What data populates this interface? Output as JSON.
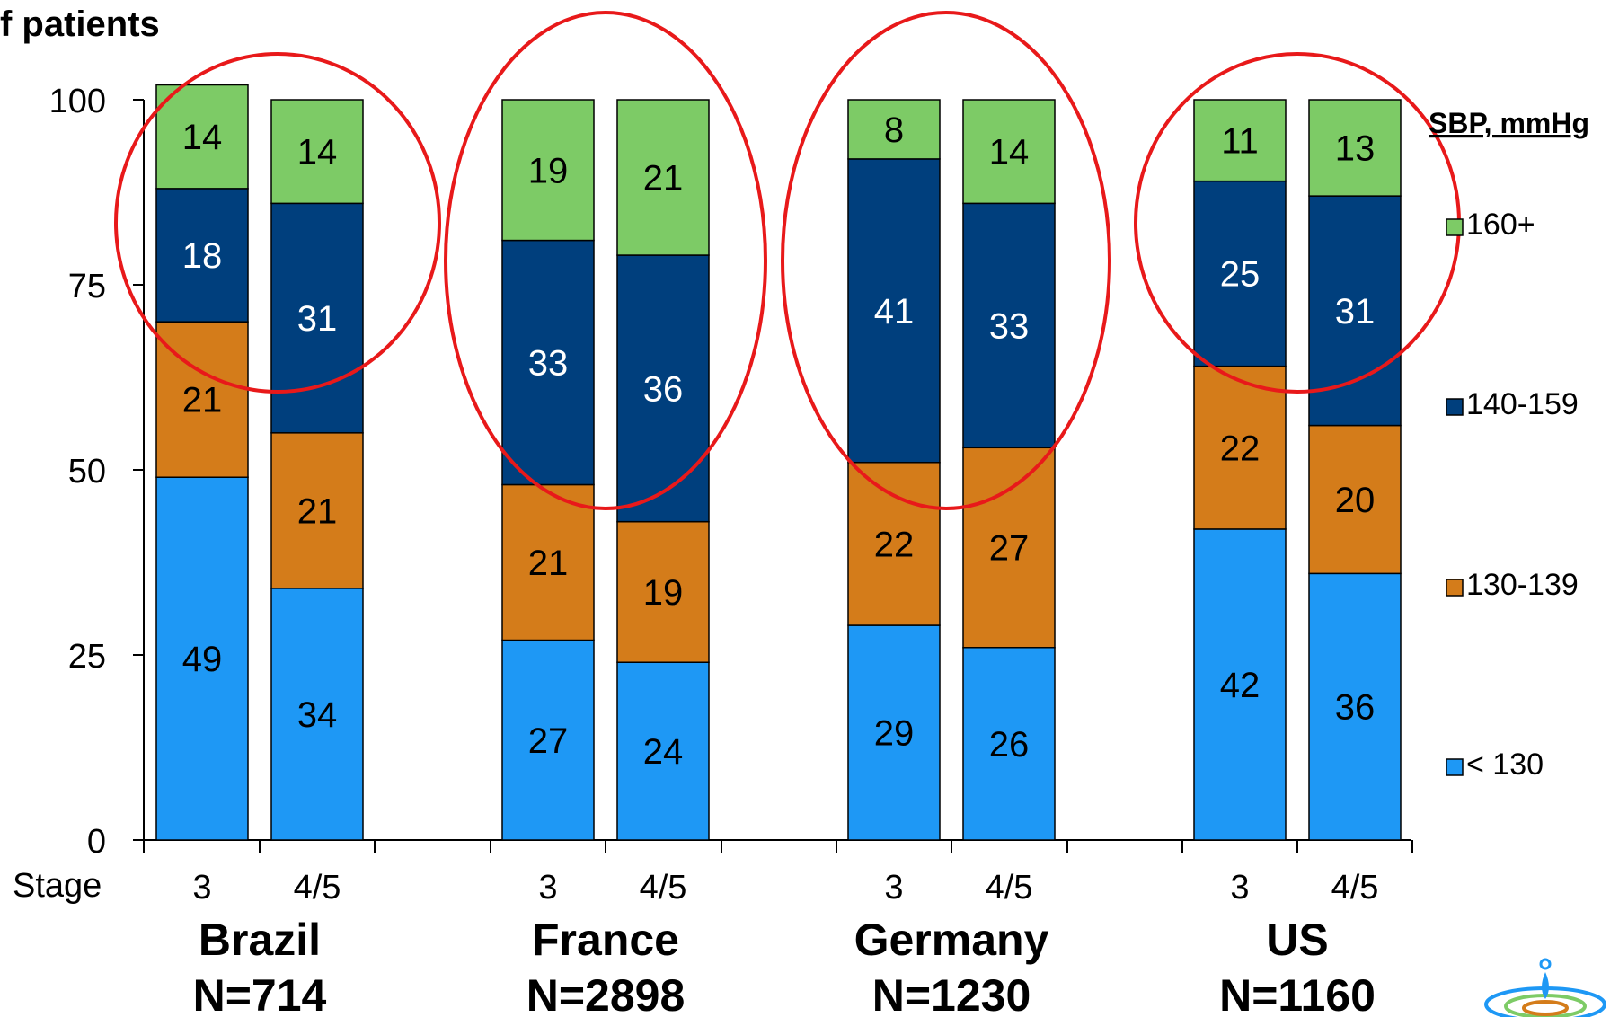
{
  "chart_data": {
    "type": "bar",
    "stacked": true,
    "ylabel": "f patients",
    "ylim": [
      0,
      100
    ],
    "yticks": [
      0,
      25,
      50,
      75,
      100
    ],
    "stage_label": "Stage",
    "groups": [
      {
        "name": "Brazil",
        "n": "N=714",
        "stages": [
          "3",
          "4/5"
        ]
      },
      {
        "name": "France",
        "n": "N=2898",
        "stages": [
          "3",
          "4/5"
        ]
      },
      {
        "name": "Germany",
        "n": "N=1230",
        "stages": [
          "3",
          "4/5"
        ]
      },
      {
        "name": "US",
        "n": "N=1160",
        "stages": [
          "3",
          "4/5"
        ]
      }
    ],
    "categories": [
      "Brazil 3",
      "Brazil 4/5",
      "France 3",
      "France 4/5",
      "Germany 3",
      "Germany 4/5",
      "US 3",
      "US 4/5"
    ],
    "series": [
      {
        "name": "< 130",
        "color": "#1e98f5",
        "label_color": "#000000",
        "values": [
          49,
          34,
          27,
          24,
          29,
          26,
          42,
          36
        ]
      },
      {
        "name": "130-139",
        "color": "#d47c1a",
        "label_color": "#000000",
        "values": [
          21,
          21,
          21,
          19,
          22,
          27,
          22,
          20
        ]
      },
      {
        "name": "140-159",
        "color": "#003f7d",
        "label_color": "#ffffff",
        "values": [
          18,
          31,
          33,
          36,
          41,
          33,
          25,
          31
        ]
      },
      {
        "name": "160+",
        "color": "#7dcb66",
        "label_color": "#000000",
        "values": [
          14,
          14,
          19,
          21,
          8,
          14,
          11,
          13
        ]
      }
    ],
    "legend": {
      "title": "SBP, mmHg",
      "position": "right"
    },
    "highlight_color": "#e8191a",
    "grid": false
  }
}
